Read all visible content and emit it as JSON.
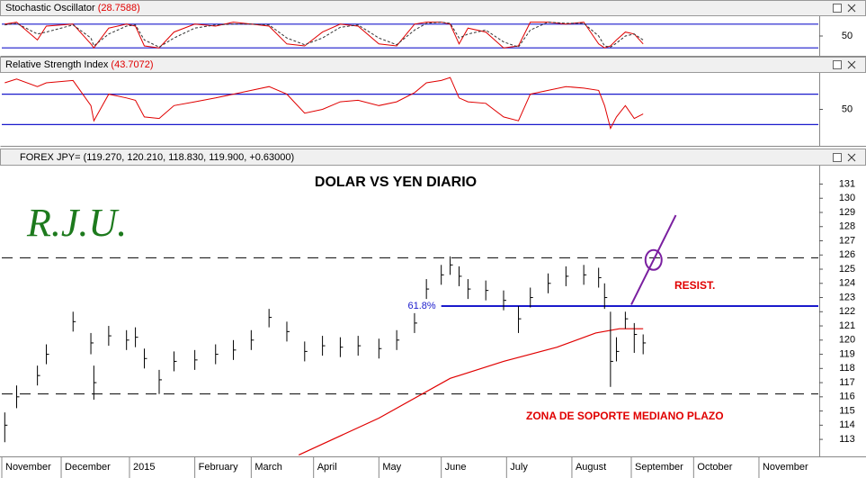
{
  "chart_data": [
    {
      "type": "line",
      "title": "Stochastic Oscillator",
      "title_value": "(28.7588)",
      "ylim": [
        0,
        100
      ],
      "yticks": [
        50
      ],
      "hlines": [
        80,
        20
      ],
      "hline_color": "#1a1acc",
      "series": [
        {
          "color": "#e00000",
          "dash": false,
          "values": [
            80,
            85,
            40,
            75,
            80,
            30,
            20,
            70,
            80,
            75,
            25,
            20,
            60,
            80,
            75,
            85,
            80,
            75,
            30,
            25,
            60,
            80,
            75,
            30,
            25,
            80,
            85,
            85,
            80,
            30,
            70,
            60,
            20,
            25,
            85,
            85,
            80,
            85,
            30,
            20,
            25,
            40,
            60,
            55,
            30
          ]
        },
        {
          "color": "#333333",
          "dash": true,
          "values": [
            78,
            82,
            55,
            60,
            78,
            45,
            25,
            55,
            75,
            78,
            40,
            22,
            45,
            70,
            78,
            80,
            80,
            78,
            45,
            28,
            45,
            72,
            78,
            45,
            28,
            65,
            82,
            85,
            82,
            45,
            55,
            65,
            35,
            22,
            65,
            85,
            82,
            82,
            50,
            25,
            22,
            32,
            50,
            55,
            40
          ]
        }
      ]
    },
    {
      "type": "line",
      "title": "Relative Strength Index",
      "title_value": "(43.7072)",
      "ylim": [
        2,
        98
      ],
      "yticks": [
        50
      ],
      "hlines": [
        70,
        30
      ],
      "hline_color": "#1a1acc",
      "series": [
        {
          "color": "#e00000",
          "dash": false,
          "values": [
            85,
            90,
            80,
            85,
            88,
            55,
            35,
            70,
            65,
            62,
            40,
            38,
            55,
            60,
            65,
            70,
            75,
            80,
            70,
            45,
            50,
            60,
            62,
            55,
            60,
            72,
            85,
            88,
            92,
            65,
            60,
            58,
            40,
            35,
            70,
            75,
            80,
            78,
            75,
            55,
            25,
            40,
            55,
            38,
            44
          ]
        }
      ]
    },
    {
      "type": "ohlc",
      "header": "FOREX JPY= (119.270, 120.210, 118.830, 119.900, +0.63000)",
      "title": "DOLAR VS YEN DIARIO",
      "logo": "R.J.U.",
      "resist_label": "RESIST.",
      "support_label": "ZONA DE SOPORTE MEDIANO PLAZO",
      "color": "#000000",
      "x": [
        1,
        5,
        12,
        15,
        24,
        30,
        31,
        36,
        42,
        45,
        48,
        53,
        58,
        65,
        72,
        78,
        84,
        90,
        96,
        102,
        108,
        114,
        120,
        127,
        133,
        139,
        143,
        148,
        151,
        154,
        157,
        163,
        169,
        174,
        178,
        184,
        190,
        196,
        201,
        203,
        205,
        207,
        210,
        213,
        216
      ],
      "high": [
        114.9,
        116.8,
        118.2,
        119.7,
        122,
        120.5,
        118.2,
        121,
        120.7,
        120.9,
        119.4,
        117.9,
        119.2,
        119.3,
        119.7,
        120,
        120.7,
        122.2,
        121.3,
        119.9,
        120.3,
        120.2,
        120.3,
        120.1,
        120.7,
        121.9,
        124.3,
        125.3,
        125.9,
        125.2,
        124.3,
        124.2,
        123.5,
        122.4,
        123.7,
        124.7,
        125.2,
        125.3,
        125.1,
        124,
        122,
        120.2,
        122,
        121.2,
        120.4
      ],
      "low": [
        112.8,
        115.2,
        116.8,
        118.3,
        120.6,
        119,
        115.8,
        119.6,
        119.3,
        119.5,
        118,
        116.2,
        117.8,
        117.9,
        118.3,
        118.6,
        119.3,
        120.9,
        119.9,
        118.5,
        118.9,
        118.8,
        118.9,
        118.7,
        119.3,
        120.5,
        122.9,
        123.9,
        124.6,
        123.8,
        122.9,
        122.8,
        122.1,
        120.5,
        122.3,
        123.3,
        123.8,
        123.9,
        123.7,
        122.2,
        116.7,
        118.5,
        120.8,
        119.1,
        119
      ],
      "close": [
        114,
        116,
        117.5,
        119,
        121.3,
        119.8,
        117,
        120.3,
        120,
        120.2,
        118.7,
        117.2,
        118.5,
        118.6,
        119,
        119.3,
        120,
        121.6,
        120.6,
        119.2,
        119.6,
        119.5,
        119.6,
        119.4,
        120,
        121.2,
        123.6,
        124.6,
        125.3,
        124.5,
        123.6,
        123.5,
        122.8,
        121.5,
        123,
        124,
        124.5,
        124.6,
        124.4,
        123,
        118.5,
        119.2,
        121.5,
        120.4,
        119.8
      ],
      "moving_average": {
        "color": "#e00000",
        "x": [
          100,
          127,
          151,
          169,
          187,
          200,
          208,
          216
        ],
        "values": [
          111.9,
          114.5,
          117.3,
          118.5,
          119.5,
          120.5,
          120.8,
          120.8
        ]
      },
      "dashed_levels": [
        125.8,
        116.2
      ],
      "resistance": {
        "value": 122.4,
        "x_from": 148,
        "color": "#1a1acc",
        "label": "61.8%"
      },
      "projection": {
        "color": "#7a1fa0",
        "x": [
          212,
          227
        ],
        "values": [
          122.5,
          128.8
        ]
      },
      "xlim": [
        0,
        275
      ],
      "ylim": [
        111.8,
        132.3
      ],
      "yticks": [
        113,
        114,
        115,
        116,
        117,
        118,
        119,
        120,
        121,
        122,
        123,
        124,
        125,
        126,
        127,
        128,
        129,
        130,
        131
      ],
      "xticks": [
        {
          "value": 0,
          "label": "November"
        },
        {
          "value": 20,
          "label": "December"
        },
        {
          "value": 43,
          "label": "2015"
        },
        {
          "value": 65,
          "label": "February"
        },
        {
          "value": 84,
          "label": "March"
        },
        {
          "value": 105,
          "label": "April"
        },
        {
          "value": 127,
          "label": "May"
        },
        {
          "value": 148,
          "label": "June"
        },
        {
          "value": 170,
          "label": "July"
        },
        {
          "value": 192,
          "label": "August"
        },
        {
          "value": 212,
          "label": "September"
        },
        {
          "value": 233,
          "label": "October"
        },
        {
          "value": 255,
          "label": "November"
        }
      ]
    }
  ]
}
